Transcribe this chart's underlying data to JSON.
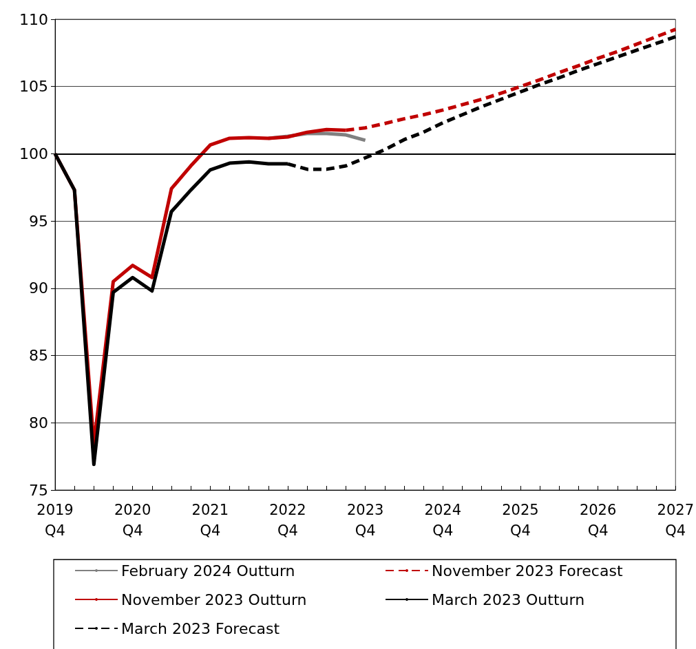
{
  "chart_data": {
    "type": "line",
    "categories": [
      "2019 Q4",
      null,
      null,
      null,
      "2020 Q4",
      null,
      null,
      null,
      "2021 Q4",
      null,
      null,
      null,
      "2022 Q4",
      null,
      null,
      null,
      "2023 Q4",
      null,
      null,
      null,
      "2024 Q4",
      null,
      null,
      null,
      "2025 Q4",
      null,
      null,
      null,
      "2026 Q4",
      null,
      null,
      null,
      "2027 Q4"
    ],
    "series": [
      {
        "name": "February 2024 Outturn",
        "color": "#808080",
        "line_style": "solid",
        "values": [
          null,
          null,
          null,
          null,
          null,
          null,
          null,
          null,
          null,
          null,
          null,
          101.15,
          101.3,
          101.5,
          101.5,
          101.4,
          101.0,
          null,
          null,
          null,
          null,
          null,
          null,
          null,
          null,
          null,
          null,
          null,
          null,
          null,
          null,
          null,
          null
        ]
      },
      {
        "name": "November 2023 Forecast",
        "color": "#c00000",
        "line_style": "dashed",
        "values": [
          null,
          null,
          null,
          null,
          null,
          null,
          null,
          null,
          null,
          null,
          null,
          null,
          null,
          null,
          null,
          101.75,
          101.93,
          102.25,
          102.6,
          102.9,
          103.25,
          103.65,
          104.05,
          104.5,
          105.0,
          105.5,
          106.05,
          106.55,
          107.1,
          107.6,
          108.15,
          108.7,
          109.25
        ]
      },
      {
        "name": "November 2023 Outturn",
        "color": "#c00000",
        "line_style": "solid",
        "values": [
          100,
          97.3,
          78.4,
          90.5,
          91.7,
          90.8,
          97.4,
          99.1,
          100.65,
          101.15,
          101.2,
          101.15,
          101.25,
          101.6,
          101.8,
          101.75,
          null,
          null,
          null,
          null,
          null,
          null,
          null,
          null,
          null,
          null,
          null,
          null,
          null,
          null,
          null,
          null,
          null
        ]
      },
      {
        "name": "March 2023 Outturn",
        "color": "#000000",
        "line_style": "solid",
        "values": [
          100,
          97.3,
          76.9,
          89.7,
          90.8,
          89.8,
          95.7,
          97.3,
          98.8,
          99.3,
          99.4,
          99.25,
          99.25,
          null,
          null,
          null,
          null,
          null,
          null,
          null,
          null,
          null,
          null,
          null,
          null,
          null,
          null,
          null,
          null,
          null,
          null,
          null,
          null
        ]
      },
      {
        "name": "March 2023 Forecast",
        "color": "#000000",
        "line_style": "dashed",
        "values": [
          null,
          null,
          null,
          null,
          null,
          null,
          null,
          null,
          null,
          null,
          null,
          null,
          99.25,
          98.85,
          98.85,
          99.1,
          99.7,
          100.3,
          101.05,
          101.6,
          102.3,
          102.9,
          103.5,
          104.05,
          104.6,
          105.15,
          105.65,
          106.2,
          106.7,
          107.2,
          107.7,
          108.2,
          108.7
        ]
      }
    ],
    "ylim": [
      75,
      110
    ],
    "yticks": [
      75,
      80,
      85,
      90,
      95,
      100,
      105,
      110
    ],
    "grid": "y",
    "legend": "bottom",
    "marker": "none",
    "ref_lines": [
      {
        "axis": "y",
        "value": 100,
        "color": "#000000"
      }
    ]
  }
}
